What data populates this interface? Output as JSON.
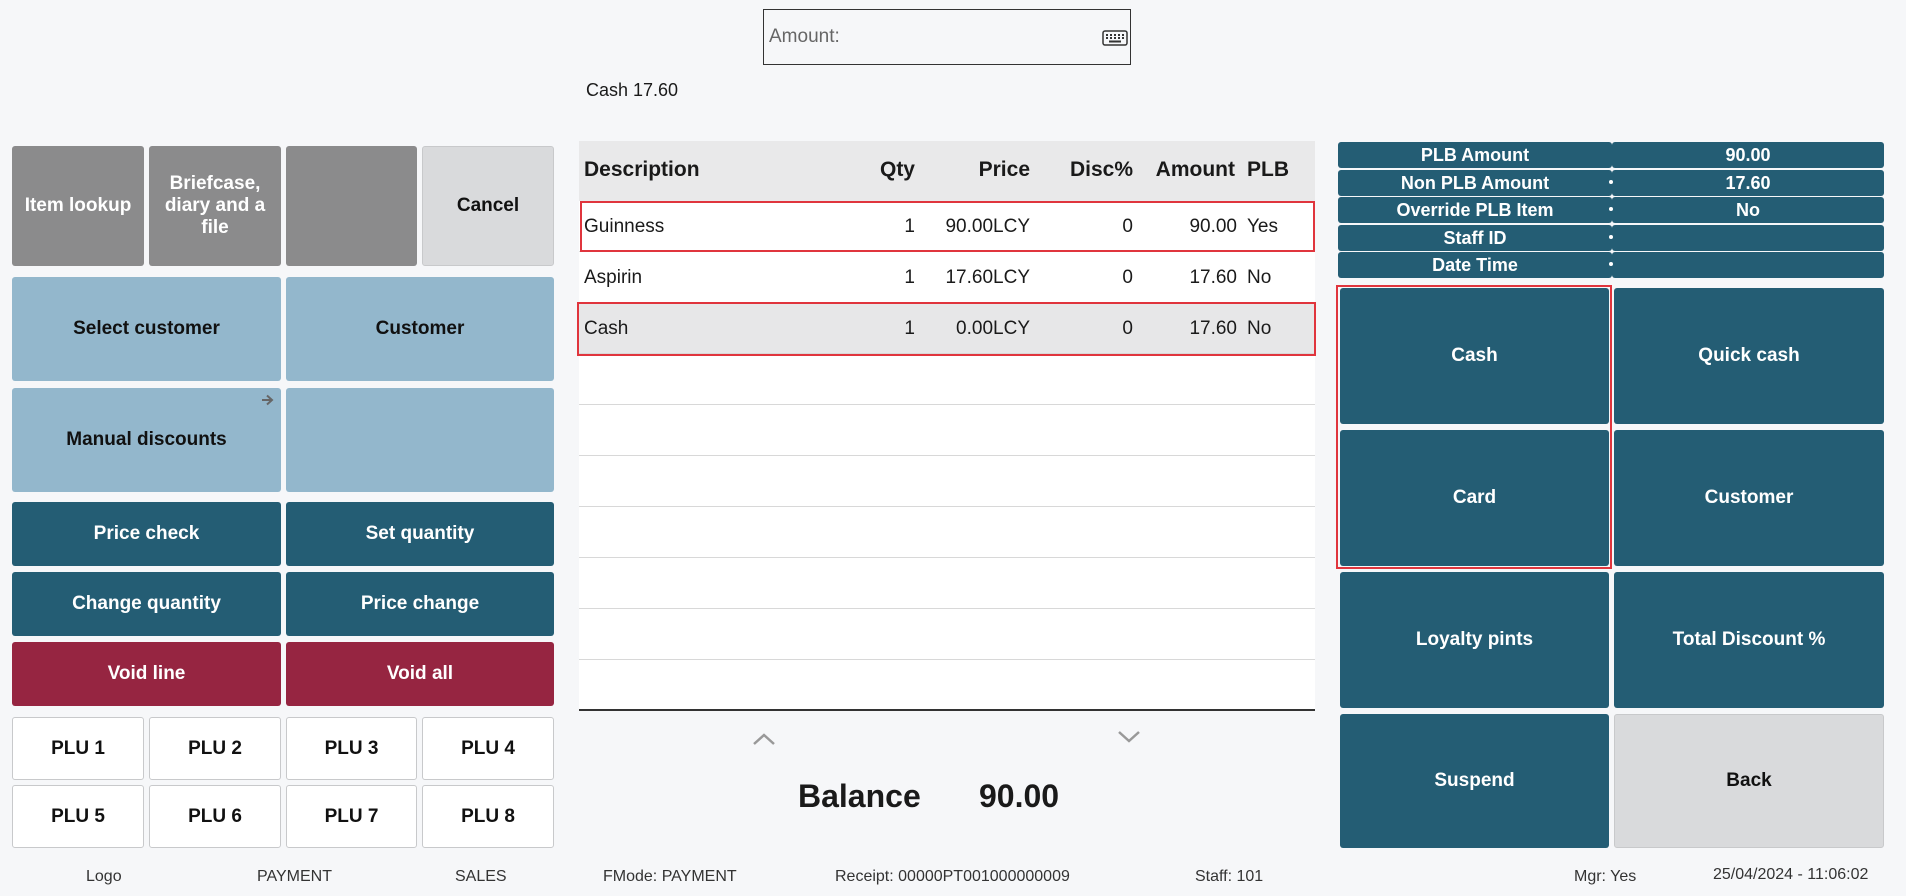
{
  "amount_input": {
    "placeholder": "Amount:",
    "value": ""
  },
  "cash_status": "Cash 17.60",
  "left_panel": {
    "item_lookup": "Item lookup",
    "briefcase": "Briefcase, diary and a file",
    "blank_1": "",
    "cancel": "Cancel",
    "select_customer": "Select customer",
    "customer": "Customer",
    "manual_discounts": "Manual discounts",
    "blank_2": "",
    "price_check": "Price check",
    "set_quantity": "Set quantity",
    "change_quantity": "Change quantity",
    "price_change": "Price change",
    "void_line": "Void line",
    "void_all": "Void all",
    "plu": [
      "PLU 1",
      "PLU 2",
      "PLU 3",
      "PLU 4",
      "PLU 5",
      "PLU 6",
      "PLU 7",
      "PLU 8"
    ]
  },
  "table": {
    "headers": {
      "description": "Description",
      "qty": "Qty",
      "price": "Price",
      "disc": "Disc%",
      "amount": "Amount",
      "plb": "PLB"
    },
    "rows": [
      {
        "description": "Guinness",
        "qty": "1",
        "price": "90.00LCY",
        "disc": "0",
        "amount": "90.00",
        "plb": "Yes"
      },
      {
        "description": "Aspirin",
        "qty": "1",
        "price": "17.60LCY",
        "disc": "0",
        "amount": "17.60",
        "plb": "No"
      },
      {
        "description": "Cash",
        "qty": "1",
        "price": "0.00LCY",
        "disc": "0",
        "amount": "17.60",
        "plb": "No"
      }
    ]
  },
  "balance": {
    "label": "Balance",
    "value": "90.00"
  },
  "info_panel": [
    {
      "label": "PLB Amount",
      "value": "90.00"
    },
    {
      "label": "Non PLB Amount",
      "value": "17.60"
    },
    {
      "label": "Override PLB Item",
      "value": "No"
    },
    {
      "label": "Staff ID",
      "value": ""
    },
    {
      "label": "Date Time",
      "value": ""
    }
  ],
  "payment_buttons": {
    "cash": "Cash",
    "quick_cash": "Quick cash",
    "card": "Card",
    "customer": "Customer",
    "loyalty": "Loyalty pints",
    "total_discount": "Total Discount %",
    "suspend": "Suspend",
    "back": "Back"
  },
  "footer": {
    "logo": "Logo",
    "payment": "PAYMENT",
    "sales": "SALES",
    "fmode": "FMode: PAYMENT",
    "receipt": "Receipt: 00000PT001000000009",
    "staff": "Staff: 101",
    "mgr": "Mgr: Yes",
    "datetime": "25/04/2024 - 11:06:02"
  },
  "colors": {
    "teal": "#245d74",
    "maroon": "#962541",
    "light_blue": "#93b7cc",
    "gray": "#8b8b8c",
    "highlight_red": "#e0353d"
  },
  "icons": {
    "keyboard": "keyboard-icon",
    "arrow": "arrow-right-icon",
    "up": "chevron-up-icon",
    "down": "chevron-down-icon"
  }
}
